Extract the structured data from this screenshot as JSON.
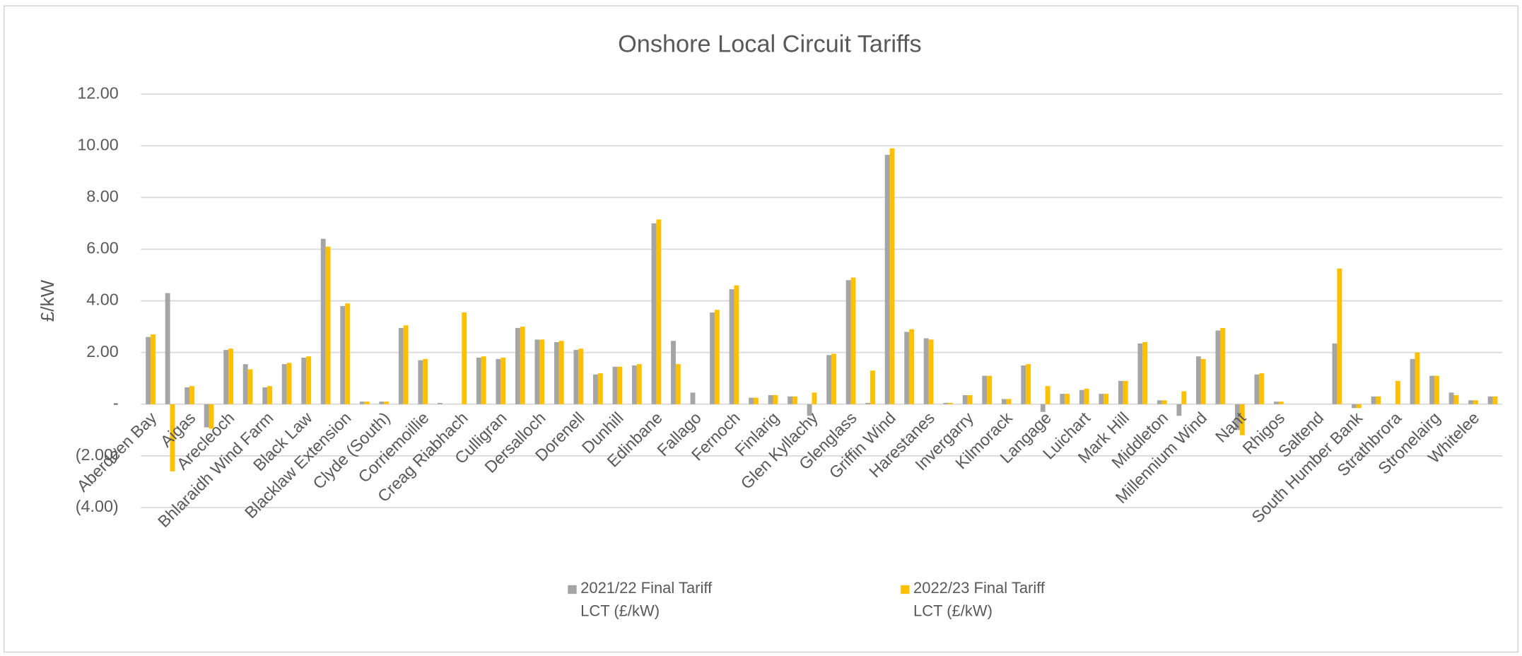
{
  "chart_data": {
    "type": "bar",
    "title": "Onshore Local Circuit Tariffs",
    "y_label": "£/kW",
    "categories": [
      "Aberdeen Bay",
      null,
      "Aigas",
      null,
      "Arecleoch",
      null,
      "Bhlaraidh Wind Farm",
      null,
      "Black Law",
      null,
      "Blacklaw Extension",
      null,
      "Clyde (South)",
      null,
      "Corriemoillie",
      null,
      "Creag Riabhach",
      null,
      "Culligran",
      null,
      "Dersalloch",
      null,
      "Dorenell",
      null,
      "Dunhill",
      null,
      "Edinbane",
      null,
      "Fallago",
      null,
      "Fernoch",
      null,
      "Finlarig",
      null,
      "Glen Kyllachy",
      null,
      "Glenglass",
      null,
      "Griffin Wind",
      null,
      "Harestanes",
      null,
      "Invergarry",
      null,
      "Kilmorack",
      null,
      "Langage",
      null,
      "Luichart",
      null,
      "Mark Hill",
      null,
      "Middleton",
      null,
      "Millennium Wind",
      null,
      "Nant",
      null,
      "Rhigos",
      null,
      "Saltend",
      null,
      "South Humber Bank",
      null,
      "Strathbrora",
      null,
      "Stronelairg",
      null,
      "Whitelee",
      null
    ],
    "series": [
      {
        "name": "2021/22 Final Tariff LCT (£/kW)",
        "color": "#a5a5a5",
        "values": [
          2.6,
          4.3,
          0.65,
          -0.9,
          2.1,
          1.55,
          0.65,
          1.55,
          1.8,
          6.4,
          3.8,
          0.1,
          0.1,
          2.95,
          1.7,
          0.05,
          0,
          1.8,
          1.75,
          2.95,
          2.5,
          2.4,
          2.1,
          1.15,
          1.45,
          1.5,
          7.0,
          2.45,
          0.45,
          3.55,
          4.45,
          0.25,
          0.35,
          0.3,
          -0.45,
          1.9,
          4.8,
          0.05,
          9.65,
          2.8,
          2.55,
          0.05,
          0.35,
          1.1,
          0.2,
          1.5,
          -0.3,
          0.4,
          0.55,
          0.4,
          0.9,
          2.35,
          0.15,
          -0.45,
          1.85,
          2.85,
          -1.0,
          1.15,
          0.1,
          0,
          0,
          2.35,
          -0.15,
          0.3,
          0,
          1.75,
          1.1,
          0.45,
          0.15,
          0.3
        ]
      },
      {
        "name": "2022/23 Final Tariff LCT (£/kW)",
        "color": "#ffc000",
        "values": [
          2.7,
          -2.6,
          0.7,
          -0.95,
          2.15,
          1.35,
          0.7,
          1.6,
          1.85,
          6.1,
          3.9,
          0.1,
          0.1,
          3.05,
          1.75,
          0,
          3.55,
          1.85,
          1.8,
          3.0,
          2.5,
          2.45,
          2.15,
          1.2,
          1.45,
          1.55,
          7.15,
          1.55,
          0,
          3.65,
          4.6,
          0.25,
          0.35,
          0.3,
          0.45,
          1.95,
          4.9,
          1.3,
          9.9,
          2.9,
          2.5,
          0.05,
          0.35,
          1.1,
          0.2,
          1.55,
          0.7,
          0.4,
          0.6,
          0.4,
          0.9,
          2.4,
          0.15,
          0.5,
          1.75,
          2.95,
          -1.2,
          1.2,
          0.1,
          0,
          0,
          5.25,
          -0.15,
          0.3,
          0.9,
          2.0,
          1.1,
          0.35,
          0.15,
          0.3
        ]
      }
    ],
    "ylim": [
      -4,
      12
    ],
    "yticks": [
      {
        "value": -4,
        "label": "(4.00)"
      },
      {
        "value": -2,
        "label": "(2.00)"
      },
      {
        "value": 0,
        "label": "-"
      },
      {
        "value": 2,
        "label": "2.00"
      },
      {
        "value": 4,
        "label": "4.00"
      },
      {
        "value": 6,
        "label": "6.00"
      },
      {
        "value": 8,
        "label": "8.00"
      },
      {
        "value": 10,
        "label": "10.00"
      },
      {
        "value": 12,
        "label": "12.00"
      }
    ],
    "grid": true,
    "legend": "bottom"
  }
}
